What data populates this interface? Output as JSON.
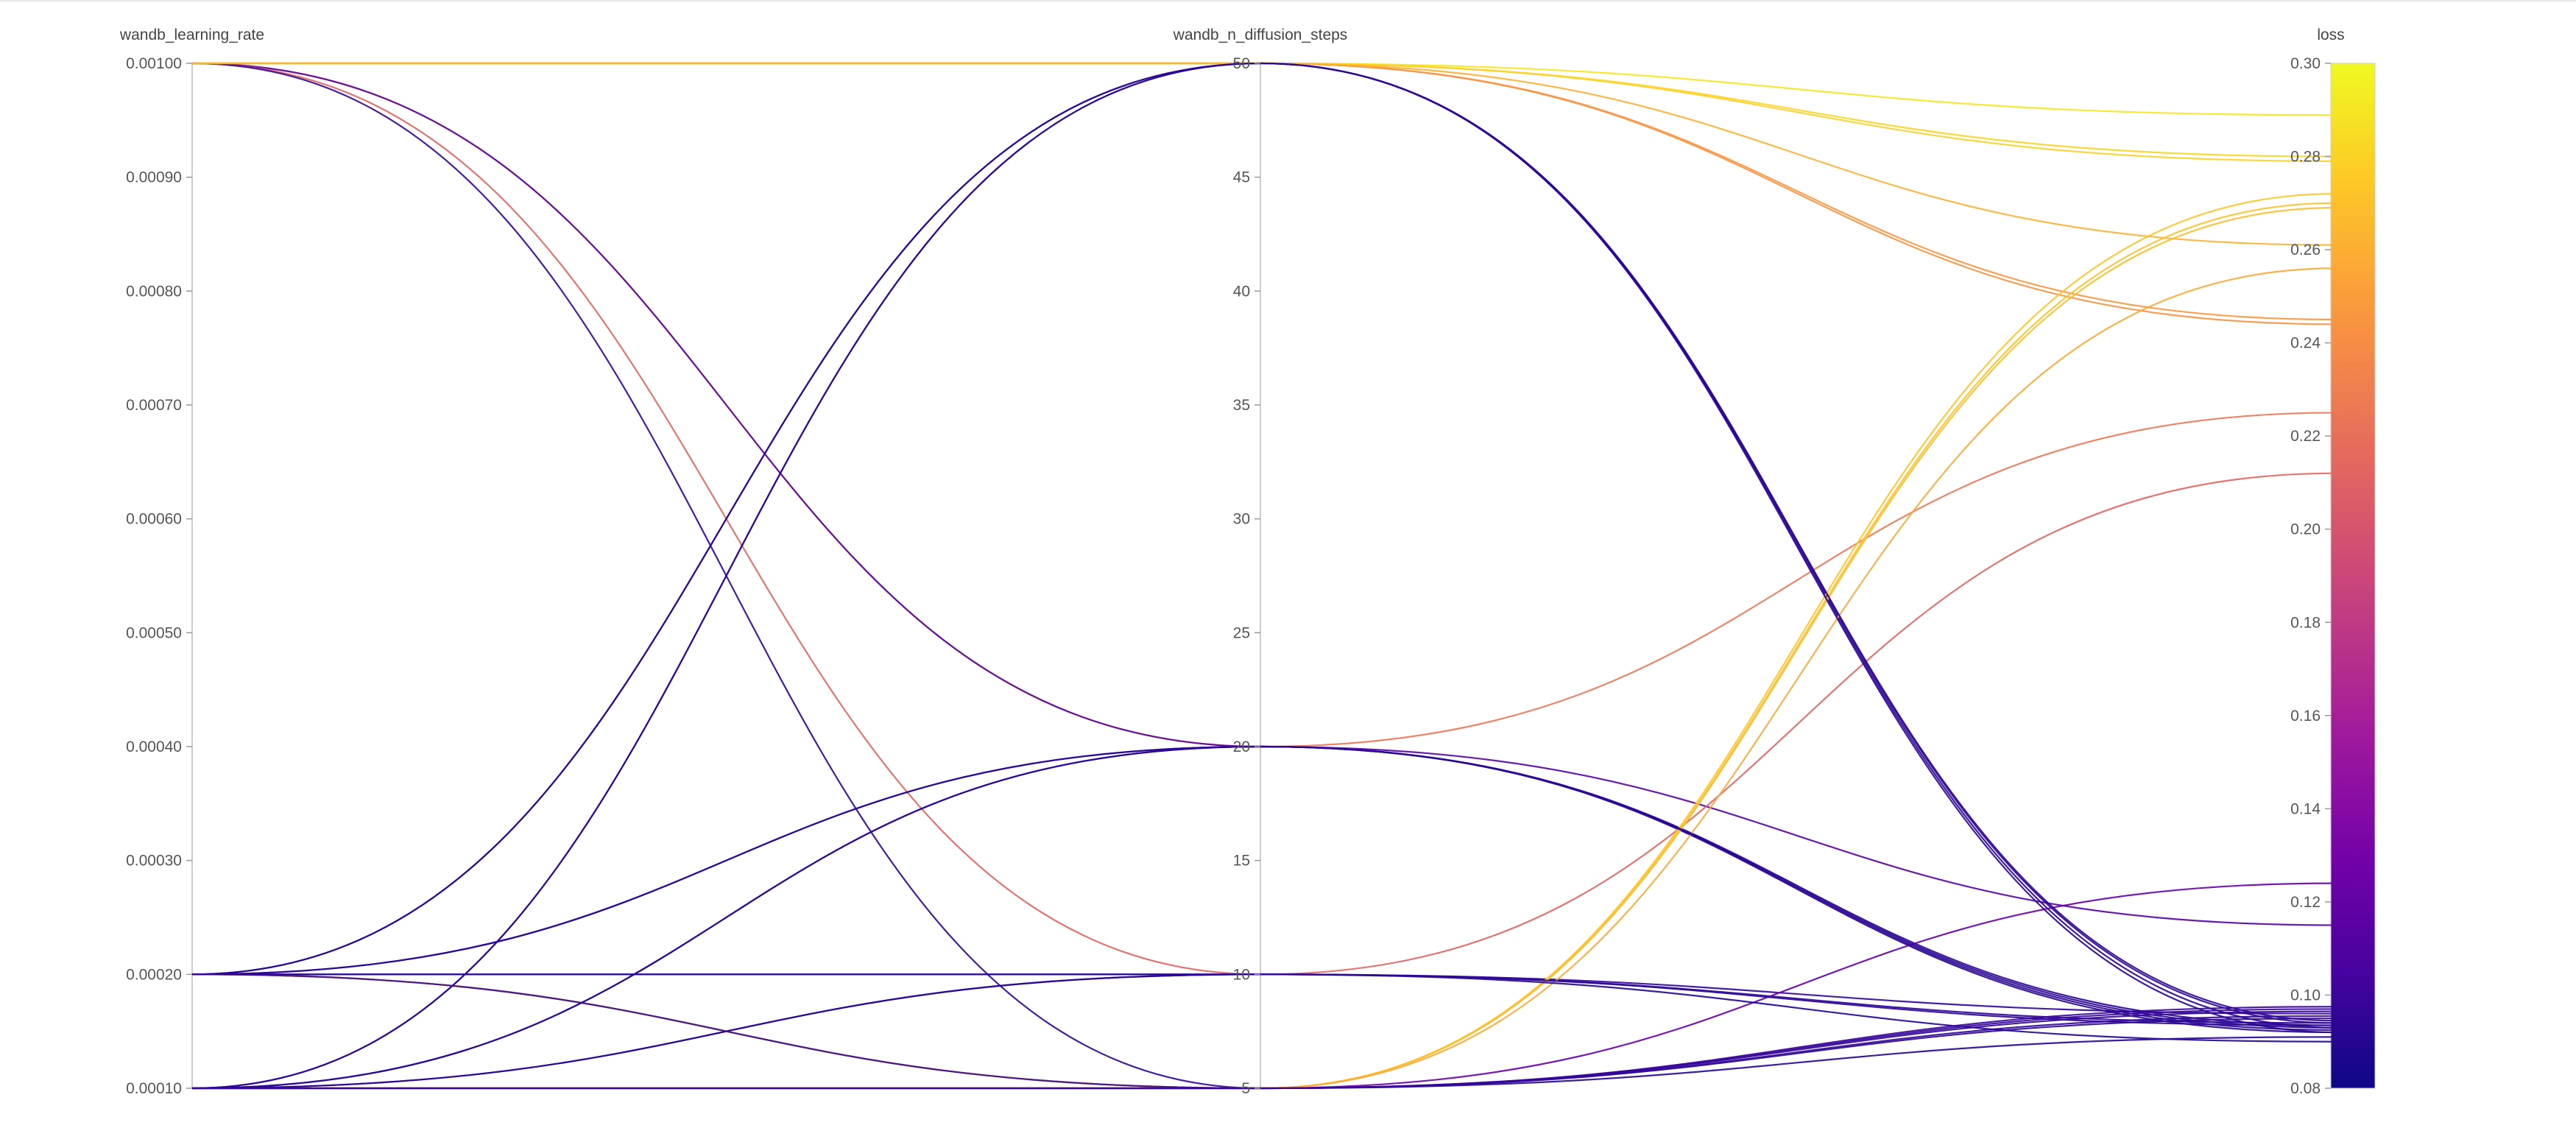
{
  "chart_data": {
    "type": "parallel_coordinates",
    "axes": [
      {
        "name": "wandb_learning_rate",
        "range": [
          0.0001,
          0.001
        ],
        "ticks": [
          0.0001,
          0.0002,
          0.0003,
          0.0004,
          0.0005,
          0.0006,
          0.0007,
          0.0008,
          0.0009,
          0.001
        ],
        "tick_labels": [
          "0.00010",
          "0.00020",
          "0.00030",
          "0.00040",
          "0.00050",
          "0.00060",
          "0.00070",
          "0.00080",
          "0.00090",
          "0.00100"
        ]
      },
      {
        "name": "wandb_n_diffusion_steps",
        "range": [
          5,
          50
        ],
        "ticks": [
          5,
          10,
          15,
          20,
          25,
          30,
          35,
          40,
          45,
          50
        ],
        "tick_labels": [
          "5",
          "10",
          "15",
          "20",
          "25",
          "30",
          "35",
          "40",
          "45",
          "50"
        ]
      },
      {
        "name": "loss",
        "range": [
          0.08,
          0.3
        ],
        "ticks": [
          0.08,
          0.1,
          0.12,
          0.14,
          0.16,
          0.18,
          0.2,
          0.22,
          0.24,
          0.26,
          0.28,
          0.3
        ],
        "tick_labels": [
          "0.08",
          "0.10",
          "0.12",
          "0.14",
          "0.16",
          "0.18",
          "0.20",
          "0.22",
          "0.24",
          "0.26",
          "0.28",
          "0.30"
        ]
      }
    ],
    "colorscale": {
      "variable": "loss",
      "range": [
        0.08,
        0.3
      ],
      "stops": [
        "#0d0887",
        "#46039f",
        "#7201a8",
        "#9c179e",
        "#bd3786",
        "#d8576b",
        "#ed7953",
        "#fb9f3a",
        "#fdca26",
        "#f0f921"
      ]
    },
    "runs": [
      {
        "lr": 0.001,
        "steps": 50,
        "loss": 0.2889
      },
      {
        "lr": 0.001,
        "steps": 50,
        "loss": 0.245
      },
      {
        "lr": 0.001,
        "steps": 50,
        "loss": 0.244
      },
      {
        "lr": 0.001,
        "steps": 20,
        "loss": 0.225
      },
      {
        "lr": 0.001,
        "steps": 20,
        "loss": 0.115
      },
      {
        "lr": 0.001,
        "steps": 10,
        "loss": 0.212
      },
      {
        "lr": 0.001,
        "steps": 5,
        "loss": 0.095
      },
      {
        "lr": 0.0002,
        "steps": 50,
        "loss": 0.094
      },
      {
        "lr": 0.0002,
        "steps": 20,
        "loss": 0.0935
      },
      {
        "lr": 0.0002,
        "steps": 10,
        "loss": 0.096
      },
      {
        "lr": 0.0002,
        "steps": 5,
        "loss": 0.0955
      },
      {
        "lr": 0.0001,
        "steps": 50,
        "loss": 0.093
      },
      {
        "lr": 0.0001,
        "steps": 20,
        "loss": 0.092
      },
      {
        "lr": 0.0001,
        "steps": 10,
        "loss": 0.094
      },
      {
        "lr": 0.0001,
        "steps": 5,
        "loss": 0.091
      },
      {
        "lr": 0.0001,
        "steps": 5,
        "loss": 0.124
      },
      {
        "lr": 0.001,
        "steps": 50,
        "loss": 0.28
      },
      {
        "lr": 0.001,
        "steps": 50,
        "loss": 0.279
      },
      {
        "lr": 0.001,
        "steps": 50,
        "loss": 0.261
      },
      {
        "lr": 0.0002,
        "steps": 5,
        "loss": 0.272
      },
      {
        "lr": 0.0002,
        "steps": 5,
        "loss": 0.27
      },
      {
        "lr": 0.0001,
        "steps": 5,
        "loss": 0.269
      },
      {
        "lr": 0.0001,
        "steps": 5,
        "loss": 0.256
      },
      {
        "lr": 0.0002,
        "steps": 10,
        "loss": 0.09
      },
      {
        "lr": 0.0001,
        "steps": 10,
        "loss": 0.0935
      },
      {
        "lr": 0.0002,
        "steps": 20,
        "loss": 0.0925
      },
      {
        "lr": 0.0001,
        "steps": 20,
        "loss": 0.093
      },
      {
        "lr": 0.0002,
        "steps": 50,
        "loss": 0.092
      },
      {
        "lr": 0.0001,
        "steps": 50,
        "loss": 0.0945
      },
      {
        "lr": 0.0001,
        "steps": 5,
        "loss": 0.0965
      },
      {
        "lr": 0.0001,
        "steps": 5,
        "loss": 0.0975
      },
      {
        "lr": 0.0002,
        "steps": 5,
        "loss": 0.097
      }
    ]
  }
}
